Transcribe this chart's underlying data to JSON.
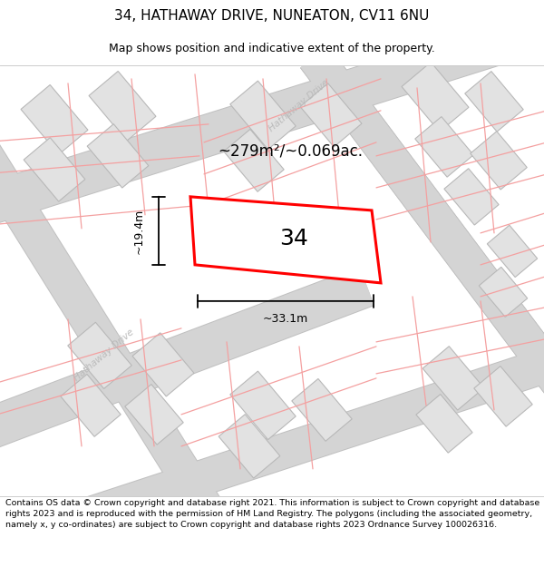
{
  "title": "34, HATHAWAY DRIVE, NUNEATON, CV11 6NU",
  "subtitle": "Map shows position and indicative extent of the property.",
  "footer": "Contains OS data © Crown copyright and database right 2021. This information is subject to Crown copyright and database rights 2023 and is reproduced with the permission of HM Land Registry. The polygons (including the associated geometry, namely x, y co-ordinates) are subject to Crown copyright and database rights 2023 Ordnance Survey 100026316.",
  "area_label": "~279m²/~0.069ac.",
  "width_label": "~33.1m",
  "height_label": "~19.4m",
  "plot_number": "34",
  "map_bg": "#f8f8f8",
  "road_fill": "#d4d4d4",
  "road_edge": "#c0c0c0",
  "building_fill": "#e2e2e2",
  "building_border": "#b8b8b8",
  "plot_fill": "#ffffff",
  "plot_border": "#ff0000",
  "parcel_line_color": "#f4a0a0",
  "title_fontsize": 11,
  "subtitle_fontsize": 9,
  "footer_fontsize": 6.8,
  "road_label_color": "#bbbbbb",
  "road_label_size": 7.5,
  "area_fontsize": 12,
  "dim_fontsize": 9,
  "plot_label_fontsize": 18
}
